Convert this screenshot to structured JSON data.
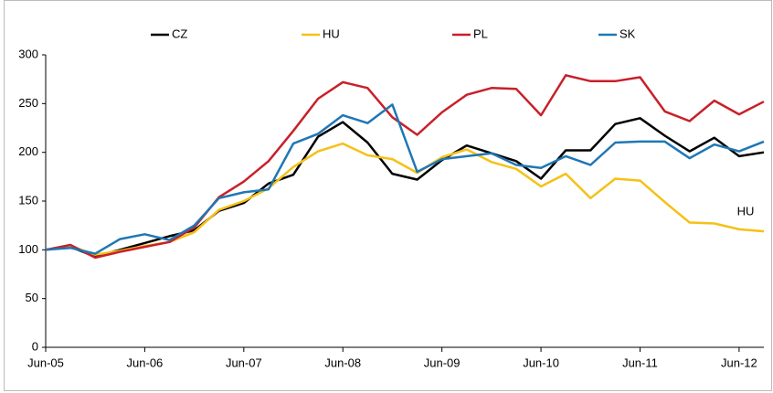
{
  "chart_data": {
    "type": "line",
    "categories": [
      "Jun-05",
      null,
      null,
      null,
      "Jun-06",
      null,
      null,
      null,
      "Jun-07",
      null,
      null,
      null,
      "Jun-08",
      null,
      null,
      null,
      "Jun-09",
      null,
      null,
      null,
      "Jun-10",
      null,
      null,
      null,
      "Jun-11",
      null,
      null,
      null,
      "Jun-12",
      null
    ],
    "series": [
      {
        "name": "CZ",
        "color": "#000000",
        "values": [
          100,
          103,
          93,
          100,
          107,
          114,
          120,
          140,
          148,
          168,
          177,
          216,
          231,
          210,
          178,
          172,
          192,
          207,
          199,
          191,
          173,
          202,
          202,
          229,
          235,
          217,
          201,
          215,
          196,
          200
        ]
      },
      {
        "name": "HU",
        "color": "#f5c116",
        "values": [
          100,
          104,
          95,
          99,
          104,
          108,
          118,
          141,
          150,
          163,
          185,
          201,
          209,
          197,
          193,
          179,
          195,
          203,
          190,
          183,
          165,
          178,
          153,
          173,
          171,
          149,
          128,
          127,
          121,
          119
        ]
      },
      {
        "name": "PL",
        "color": "#c8202a",
        "values": [
          100,
          105,
          92,
          98,
          103,
          108,
          123,
          154,
          170,
          191,
          222,
          255,
          272,
          266,
          236,
          218,
          241,
          259,
          266,
          265,
          238,
          279,
          273,
          273,
          277,
          242,
          232,
          253,
          239,
          252
        ]
      },
      {
        "name": "SK",
        "color": "#1f77b4",
        "values": [
          100,
          102,
          96,
          111,
          116,
          110,
          125,
          153,
          159,
          162,
          209,
          219,
          238,
          230,
          249,
          180,
          193,
          196,
          199,
          187,
          184,
          196,
          187,
          210,
          211,
          211,
          194,
          208,
          201,
          211
        ]
      }
    ],
    "ylim": [
      0,
      300
    ],
    "yticks": [
      0,
      50,
      100,
      150,
      200,
      250,
      300
    ],
    "annotation": "HU",
    "legend": "top",
    "grid": false
  }
}
